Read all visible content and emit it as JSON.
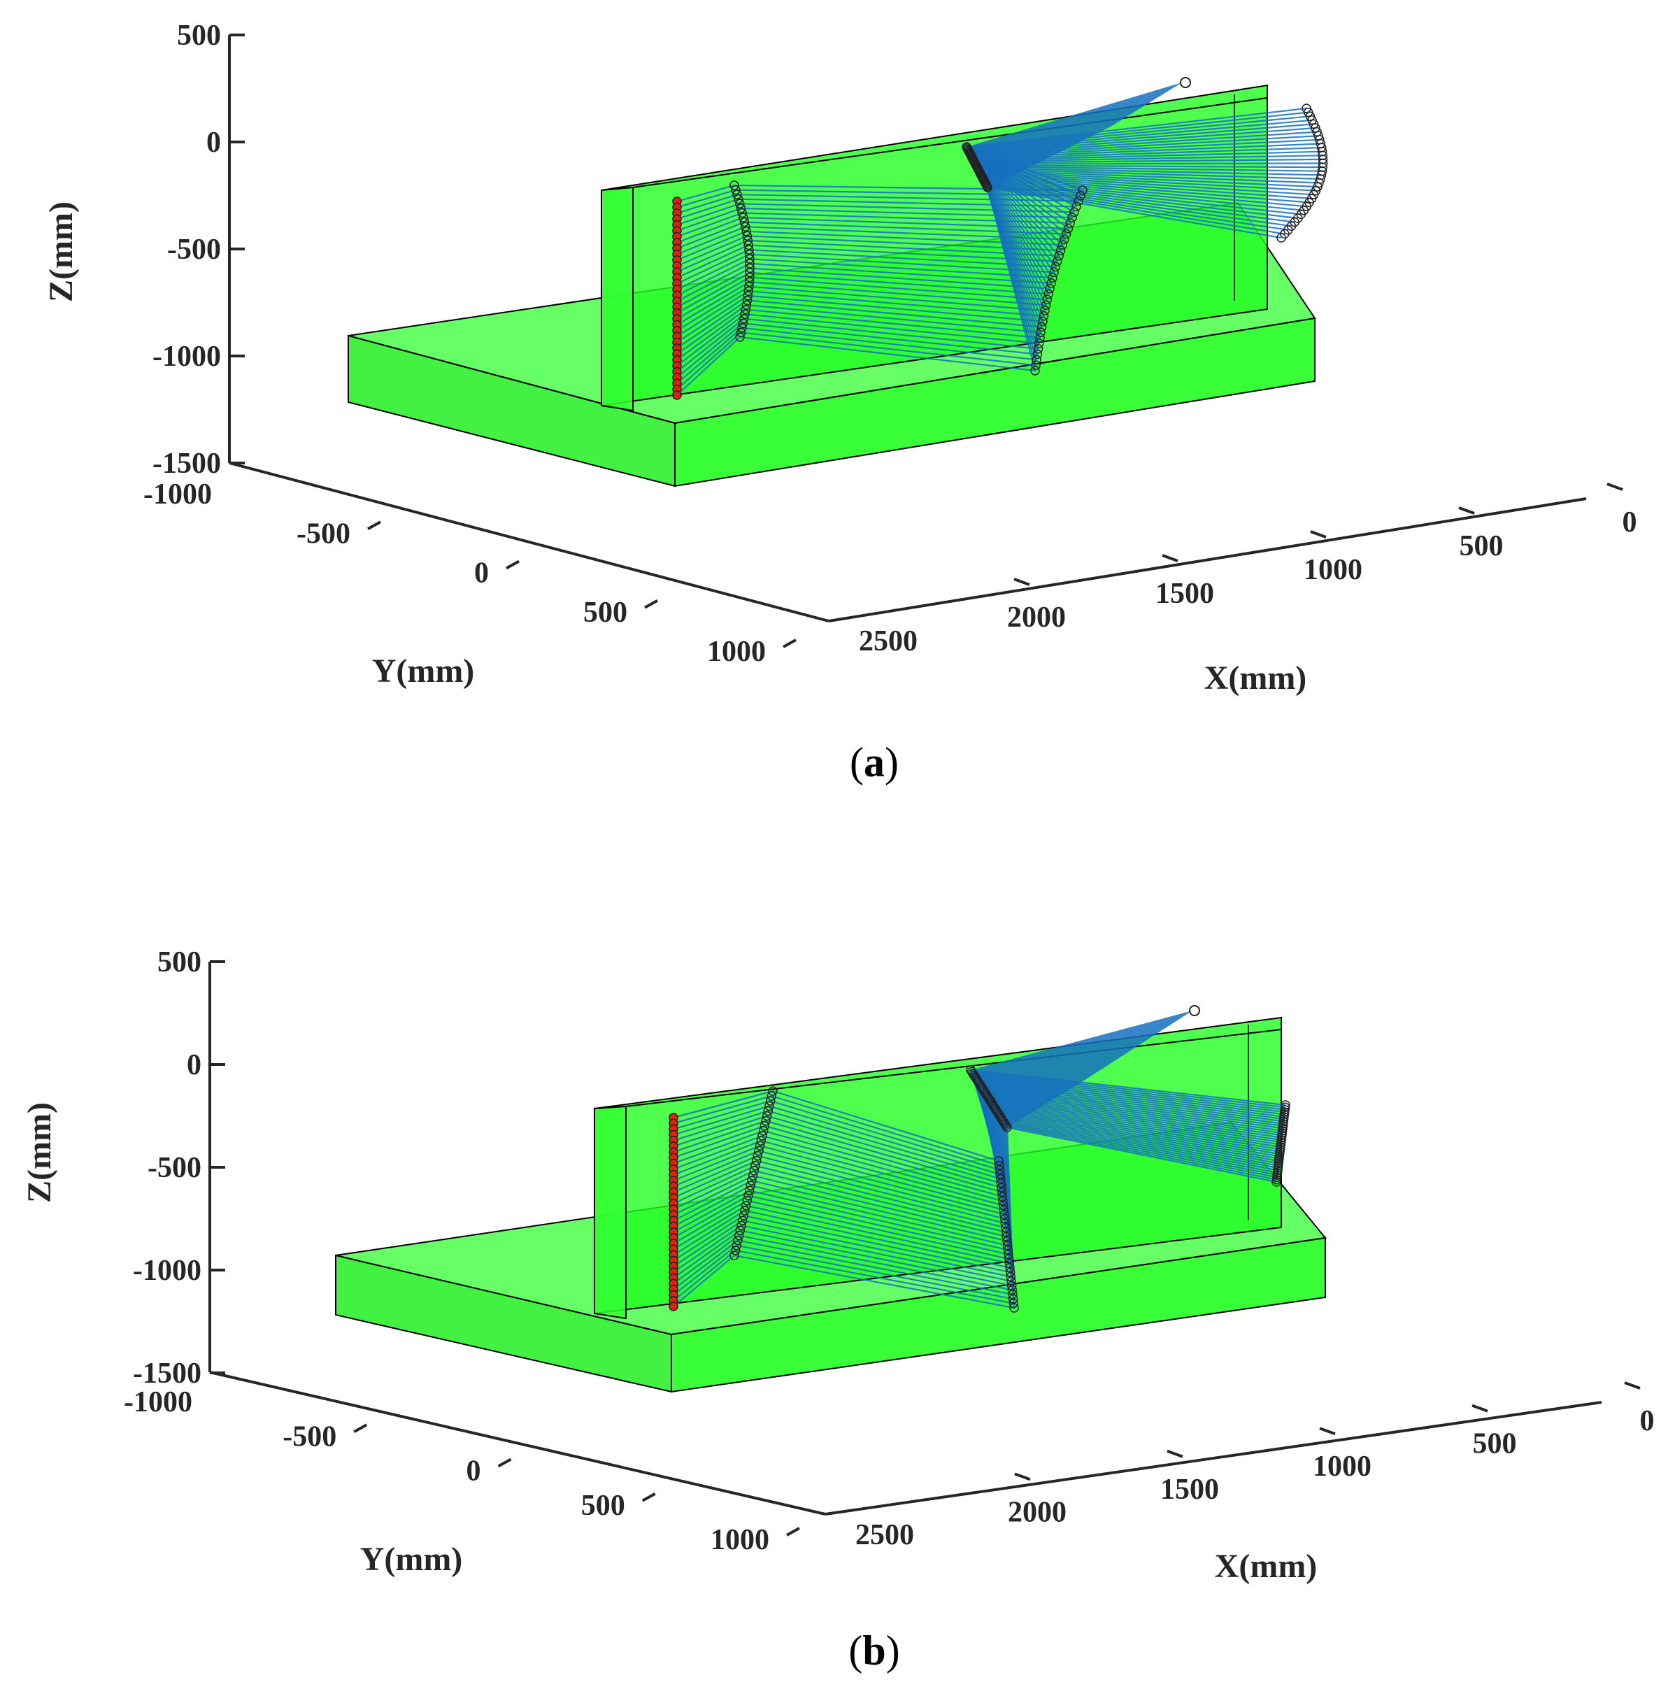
{
  "chart_data": [
    {
      "type": "scatter",
      "subtitle": "(a)",
      "caption_letter": "a",
      "xlabel": "X(mm)",
      "ylabel": "Y(mm)",
      "zlabel": "Z(mm)",
      "x_ticks": [
        "2500",
        "2000",
        "1500",
        "1000",
        "500",
        "0"
      ],
      "y_ticks": [
        "-1000",
        "-500",
        "0",
        "500",
        "1000"
      ],
      "z_ticks": [
        "500",
        "0",
        "-500",
        "-1000",
        "-1500"
      ],
      "xlim": [
        0,
        2500
      ],
      "ylim": [
        -1000,
        1000
      ],
      "zlim": [
        -1500,
        500
      ],
      "grid": false,
      "colors": {
        "workpiece": "#22ff22",
        "trajectory": "#1570c0",
        "start_points": "#dd2211",
        "markers": "#222222"
      }
    },
    {
      "type": "scatter",
      "subtitle": "(b)",
      "caption_letter": "b",
      "xlabel": "X(mm)",
      "ylabel": "Y(mm)",
      "zlabel": "Z(mm)",
      "x_ticks": [
        "2500",
        "2000",
        "1500",
        "1000",
        "500",
        "0"
      ],
      "y_ticks": [
        "-1000",
        "-500",
        "0",
        "500",
        "1000"
      ],
      "z_ticks": [
        "500",
        "0",
        "-500",
        "-1000",
        "-1500"
      ],
      "xlim": [
        0,
        2500
      ],
      "ylim": [
        -1000,
        1000
      ],
      "zlim": [
        -1500,
        500
      ],
      "grid": false,
      "colors": {
        "workpiece": "#22ff22",
        "trajectory": "#1570c0",
        "start_points": "#dd2211",
        "markers": "#222222"
      }
    }
  ]
}
